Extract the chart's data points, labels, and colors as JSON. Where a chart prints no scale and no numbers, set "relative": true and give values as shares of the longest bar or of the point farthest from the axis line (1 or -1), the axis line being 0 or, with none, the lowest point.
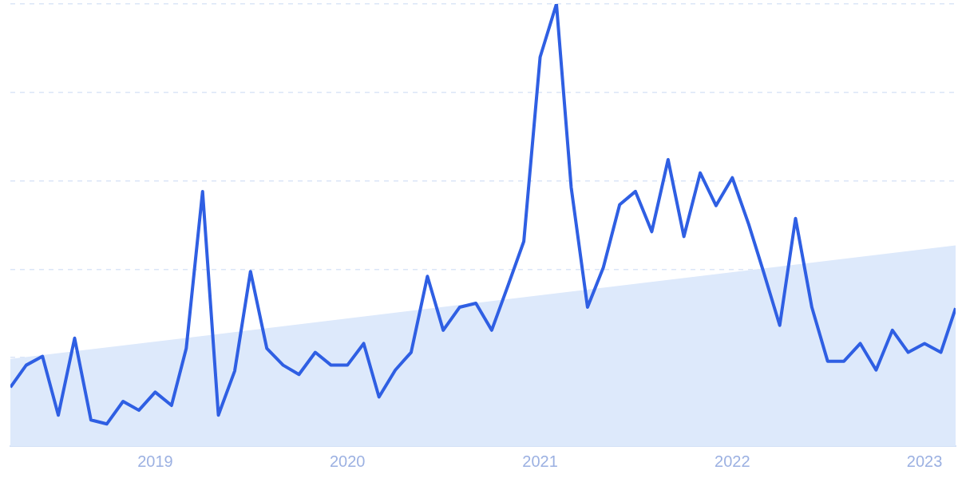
{
  "chart_data": {
    "type": "line",
    "relative": true,
    "grid": "y",
    "x": [
      "2018-04",
      "2018-05",
      "2018-06",
      "2018-07",
      "2018-08",
      "2018-09",
      "2018-10",
      "2018-11",
      "2018-12",
      "2019-01",
      "2019-02",
      "2019-03",
      "2019-04",
      "2019-05",
      "2019-06",
      "2019-07",
      "2019-08",
      "2019-09",
      "2019-10",
      "2019-11",
      "2019-12",
      "2020-01",
      "2020-02",
      "2020-03",
      "2020-04",
      "2020-05",
      "2020-06",
      "2020-07",
      "2020-08",
      "2020-09",
      "2020-10",
      "2020-11",
      "2020-12",
      "2021-01",
      "2021-02",
      "2021-03",
      "2021-04",
      "2021-05",
      "2021-06",
      "2021-07",
      "2021-08",
      "2021-09",
      "2021-10",
      "2021-11",
      "2021-12",
      "2022-01",
      "2022-02",
      "2022-03",
      "2022-04",
      "2022-05",
      "2022-06",
      "2022-07",
      "2022-08",
      "2022-09",
      "2022-10",
      "2022-11",
      "2022-12",
      "2023-01",
      "2023-02",
      "2023-03"
    ],
    "xlim": [
      "2018-04",
      "2023-03"
    ],
    "xticks": [
      {
        "value": "2019-01",
        "label": "2019"
      },
      {
        "value": "2020-01",
        "label": "2020"
      },
      {
        "value": "2021-01",
        "label": "2021"
      },
      {
        "value": "2022-01",
        "label": "2022"
      },
      {
        "value": "2023-01",
        "label": "2023"
      }
    ],
    "series": [
      {
        "type": "area",
        "color": "#dde9fb",
        "x": [
          "2018-04",
          "2023-03"
        ],
        "values": [
          0.197,
          0.454
        ]
      },
      {
        "color": "#2f5fe3",
        "values": [
          0.133,
          0.183,
          0.203,
          0.07,
          0.244,
          0.059,
          0.05,
          0.101,
          0.081,
          0.122,
          0.092,
          0.221,
          0.576,
          0.07,
          0.17,
          0.395,
          0.221,
          0.183,
          0.162,
          0.212,
          0.183,
          0.183,
          0.232,
          0.111,
          0.172,
          0.212,
          0.384,
          0.262,
          0.314,
          0.323,
          0.262,
          0.363,
          0.463,
          0.88,
          1,
          0.585,
          0.314,
          0.404,
          0.546,
          0.576,
          0.485,
          0.648,
          0.474,
          0.618,
          0.544,
          0.607,
          0.502,
          0.395,
          0.273,
          0.515,
          0.314,
          0.192,
          0.192,
          0.232,
          0.172,
          0.262,
          0.212,
          0.232,
          0.212,
          0.312
        ]
      }
    ]
  }
}
